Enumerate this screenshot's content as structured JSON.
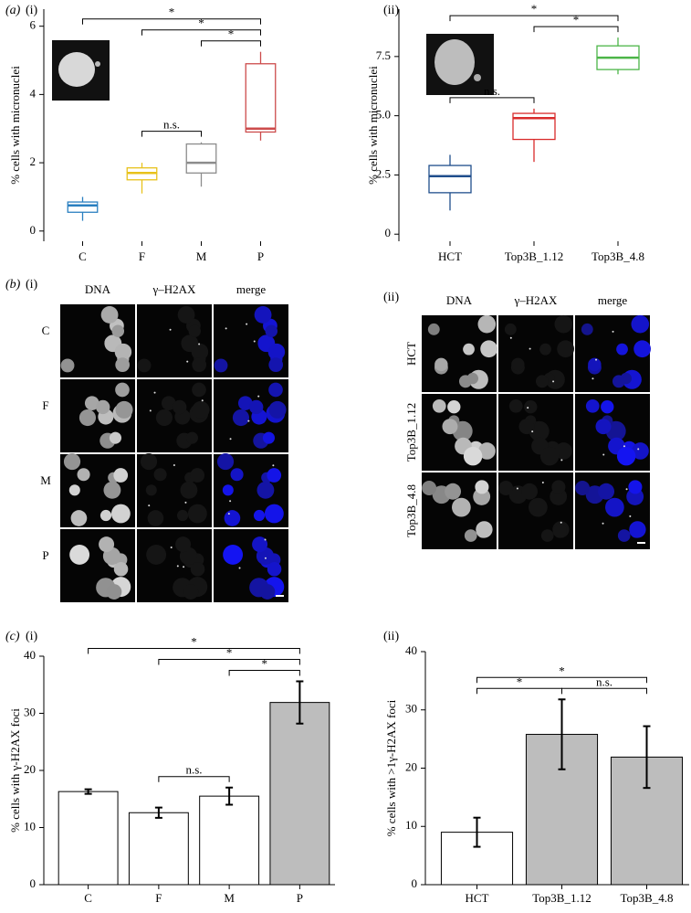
{
  "chart_data": [
    {
      "type": "box",
      "panel": "(a)",
      "subpanel": "(i)",
      "ylabel": "% cells with micronuclei",
      "categories": [
        "C",
        "F",
        "M",
        "P"
      ],
      "min": [
        0.3,
        1.1,
        1.3,
        2.65
      ],
      "q1": [
        0.55,
        1.5,
        1.7,
        2.9
      ],
      "median": [
        0.75,
        1.7,
        2.0,
        3.0
      ],
      "q3": [
        0.85,
        1.85,
        2.55,
        4.9
      ],
      "max": [
        1.0,
        2.0,
        2.6,
        5.25
      ],
      "colors": [
        "#2a7fc0",
        "#e8c21c",
        "#8c8c8c",
        "#cc4b4b"
      ],
      "ylim": [
        -0.3,
        6.5
      ],
      "yticks": [
        0,
        2,
        4,
        6
      ],
      "annotations": [
        {
          "text": "n.s.",
          "between": [
            "F",
            "M"
          ]
        },
        {
          "text": "*",
          "between": [
            "M",
            "P"
          ]
        },
        {
          "text": "*",
          "between": [
            "F",
            "P"
          ]
        },
        {
          "text": "*",
          "between": [
            "C",
            "P"
          ]
        }
      ]
    },
    {
      "type": "box",
      "subpanel": "(ii)",
      "ylabel": "% cells with micronuclei",
      "categories": [
        "HCT",
        "Top3B_1.12",
        "Top3B_4.8"
      ],
      "min": [
        1.0,
        3.05,
        6.75
      ],
      "q1": [
        1.75,
        4.0,
        6.95
      ],
      "median": [
        2.45,
        4.9,
        7.45
      ],
      "q3": [
        2.9,
        5.1,
        7.95
      ],
      "max": [
        3.35,
        5.3,
        8.3
      ],
      "colors": [
        "#1f4e8c",
        "#d92b2b",
        "#4cb548"
      ],
      "ylim": [
        -0.3,
        9.5
      ],
      "yticks": [
        0,
        2.5,
        {
          "value": 5,
          "label": "5.0"
        },
        7.5
      ],
      "annotations": [
        {
          "text": "n.s.",
          "between": [
            "HCT",
            "Top3B_1.12"
          ]
        },
        {
          "text": "*",
          "between": [
            "Top3B_1.12",
            "Top3B_4.8"
          ]
        },
        {
          "text": "*",
          "between": [
            "HCT",
            "Top3B_4.8"
          ]
        }
      ]
    },
    {
      "type": "bar",
      "panel": "(c)",
      "subpanel": "(i)",
      "ylabel": "% cells with γ-H2AX foci",
      "categories": [
        "C",
        "F",
        "M",
        "P"
      ],
      "values": [
        16.3,
        12.6,
        15.5,
        31.9
      ],
      "errors": [
        0.4,
        0.9,
        1.5,
        3.7
      ],
      "colors": [
        "#ffffff",
        "#ffffff",
        "#ffffff",
        "#bdbdbd"
      ],
      "ylim": [
        0,
        40
      ],
      "yticks": [
        0,
        10,
        20,
        30,
        40
      ],
      "annotations": [
        {
          "text": "n.s.",
          "between": [
            "F",
            "M"
          ]
        },
        {
          "text": "*",
          "between": [
            "M",
            "P"
          ]
        },
        {
          "text": "*",
          "between": [
            "F",
            "P"
          ]
        },
        {
          "text": "*",
          "between": [
            "C",
            "P"
          ]
        }
      ]
    },
    {
      "type": "bar",
      "subpanel": "(ii)",
      "ylabel": "% cells with >1γ-H2AX foci",
      "categories": [
        "HCT",
        "Top3B_1.12",
        "Top3B_4.8"
      ],
      "values": [
        9.0,
        25.8,
        21.9
      ],
      "errors": [
        2.5,
        6.0,
        5.3
      ],
      "colors": [
        "#ffffff",
        "#bdbdbd",
        "#bdbdbd"
      ],
      "ylim": [
        0,
        40
      ],
      "yticks": [
        0,
        10,
        20,
        30,
        40
      ],
      "annotations": [
        {
          "text": "*",
          "between": [
            "HCT",
            "Top3B_1.12"
          ]
        },
        {
          "text": "n.s.",
          "between": [
            "Top3B_1.12",
            "Top3B_4.8"
          ]
        },
        {
          "text": "*",
          "between": [
            "HCT",
            "Top3B_4.8"
          ]
        }
      ]
    }
  ],
  "panel_b": {
    "label": "(b)",
    "parts": [
      {
        "sublabel": "(i)",
        "columns": [
          {
            "text": "DNA",
            "color": "#2f4fd0"
          },
          {
            "text": "γ–H2AX",
            "color": "#2e9c3a"
          },
          {
            "text": "merge",
            "color": "#000000"
          }
        ],
        "rows": [
          "C",
          "F",
          "M",
          "P"
        ]
      },
      {
        "sublabel": "(ii)",
        "columns": [
          {
            "text": "DNA",
            "color": "#2f4fd0"
          },
          {
            "text": "γ–H2AX",
            "color": "#d02a2a"
          },
          {
            "text": "merge",
            "color": "#000000"
          }
        ],
        "rows": [
          "HCT",
          "Top3B_1.12",
          "Top3B_4.8"
        ]
      }
    ]
  }
}
